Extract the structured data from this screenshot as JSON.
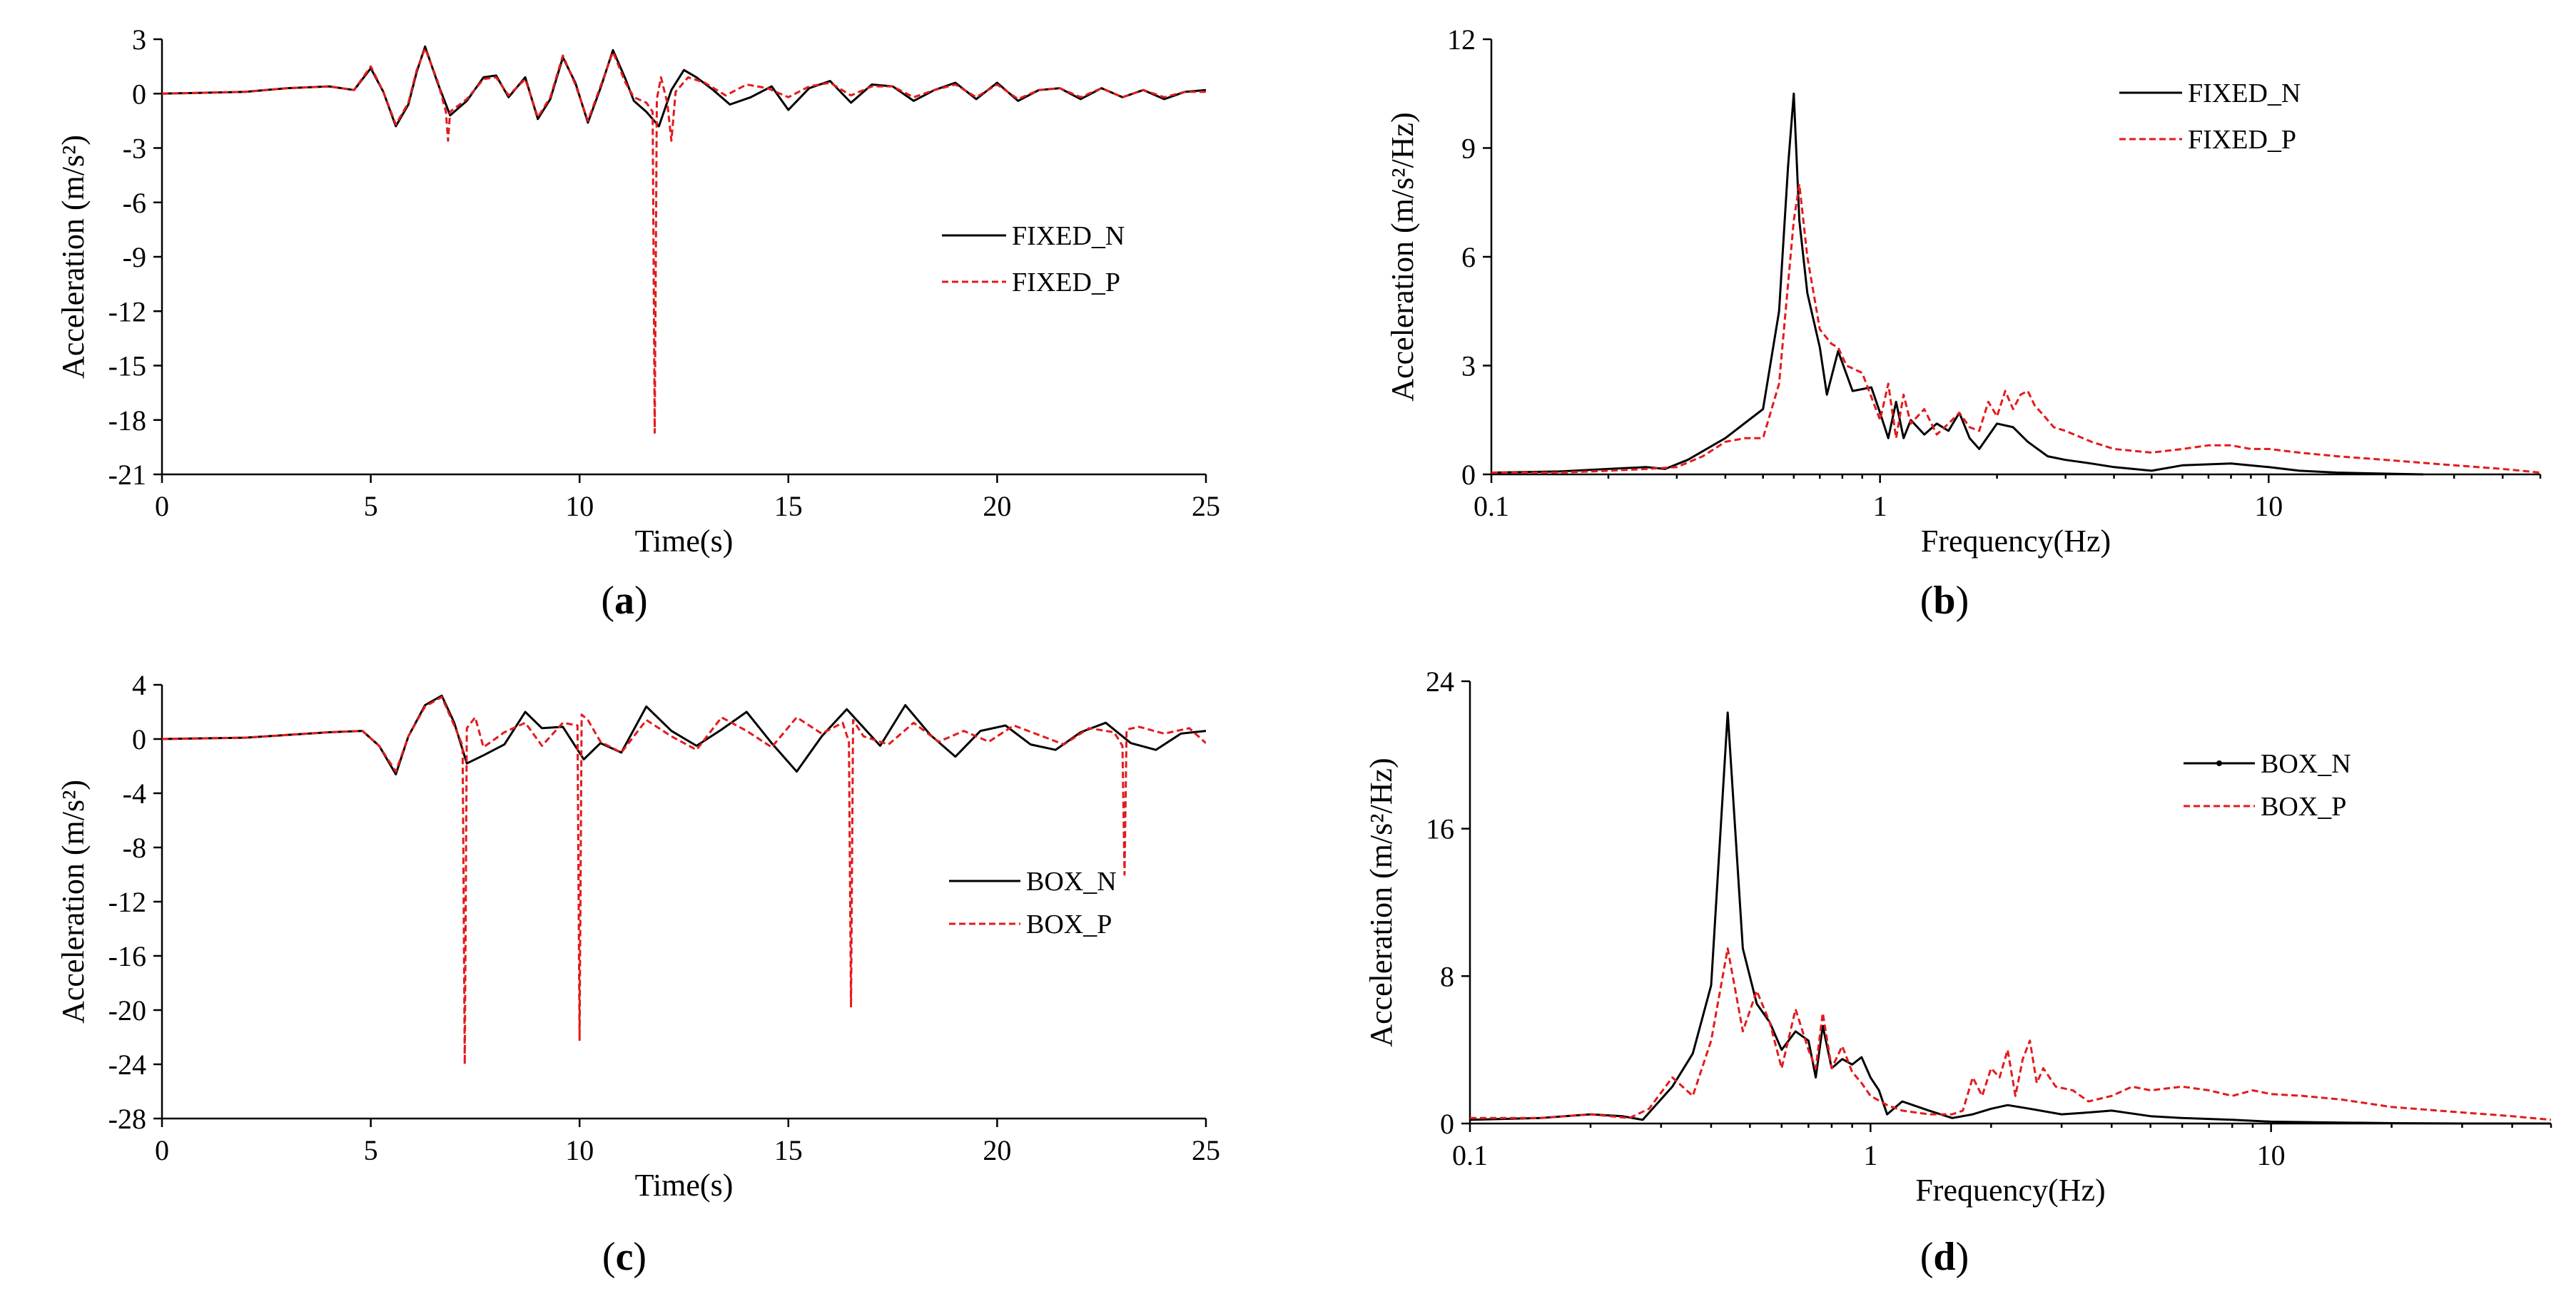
{
  "chart_data": [
    {
      "id": "a",
      "panel_label": "a",
      "type": "line",
      "xscale": "linear",
      "xlabel": "Time(s)",
      "ylabel": "Acceleration (m/s²)",
      "xlim": [
        0,
        25
      ],
      "ylim": [
        -21,
        3
      ],
      "xticks": [
        0,
        5,
        10,
        15,
        20,
        25
      ],
      "xtick_labels": [
        "0",
        "5",
        "10",
        "15",
        "20",
        "25"
      ],
      "yticks": [
        3,
        0,
        -3,
        -6,
        -9,
        -12,
        -15,
        -18,
        -21
      ],
      "ytick_labels": [
        "3",
        "0",
        "-3",
        "-6",
        "-9",
        "-12",
        "-15",
        "-18",
        "-21"
      ],
      "legend": [
        {
          "name": "FIXED_N",
          "color": "#000000",
          "style": "solid"
        },
        {
          "name": "FIXED_P",
          "color": "#e41a1c",
          "style": "dashed"
        }
      ],
      "series": [
        {
          "name": "FIXED_N",
          "color": "#000000",
          "style": "solid",
          "x": [
            0,
            2,
            3,
            4,
            4.6,
            5.0,
            5.3,
            5.6,
            5.9,
            6.1,
            6.3,
            6.6,
            6.9,
            7.3,
            7.7,
            8.0,
            8.3,
            8.7,
            9.0,
            9.3,
            9.6,
            9.9,
            10.2,
            10.5,
            10.8,
            11.1,
            11.3,
            11.6,
            11.9,
            12.2,
            12.5,
            12.8,
            13.2,
            13.6,
            14.1,
            14.6,
            15.0,
            15.5,
            16.0,
            16.5,
            17.0,
            17.5,
            18.0,
            18.5,
            19.0,
            19.5,
            20.0,
            20.5,
            21.0,
            21.5,
            22.0,
            22.5,
            23.0,
            23.5,
            24.0,
            24.5,
            25
          ],
          "y": [
            0,
            0.1,
            0.3,
            0.4,
            0.2,
            1.4,
            0.1,
            -1.8,
            -0.6,
            1.2,
            2.6,
            0.6,
            -1.2,
            -0.4,
            0.9,
            1.0,
            -0.2,
            0.9,
            -1.4,
            -0.3,
            2.0,
            0.6,
            -1.6,
            0.3,
            2.4,
            0.8,
            -0.4,
            -1.0,
            -1.8,
            0.2,
            1.3,
            0.9,
            0.2,
            -0.6,
            -0.2,
            0.4,
            -0.9,
            0.3,
            0.7,
            -0.5,
            0.5,
            0.4,
            -0.4,
            0.2,
            0.6,
            -0.3,
            0.6,
            -0.4,
            0.2,
            0.3,
            -0.3,
            0.3,
            -0.2,
            0.2,
            -0.3,
            0.1,
            0.2
          ]
        },
        {
          "name": "FIXED_P",
          "color": "#e41a1c",
          "style": "dashed",
          "x": [
            0,
            2,
            3,
            4,
            4.6,
            5.0,
            5.3,
            5.6,
            5.9,
            6.1,
            6.3,
            6.6,
            6.8,
            6.85,
            6.9,
            7.3,
            7.7,
            8.0,
            8.3,
            8.7,
            9.0,
            9.3,
            9.6,
            9.9,
            10.2,
            10.5,
            10.8,
            11.1,
            11.3,
            11.6,
            11.75,
            11.8,
            11.85,
            11.95,
            12.1,
            12.2,
            12.3,
            12.6,
            13.0,
            13.5,
            14.0,
            14.5,
            15.0,
            15.5,
            16.0,
            16.5,
            17.0,
            17.5,
            18.0,
            18.5,
            19.0,
            19.5,
            20.0,
            20.5,
            21.0,
            21.5,
            22.0,
            22.5,
            23.0,
            23.5,
            24.0,
            24.5,
            25
          ],
          "y": [
            0,
            0.1,
            0.3,
            0.4,
            0.2,
            1.5,
            0.1,
            -1.7,
            -0.5,
            1.3,
            2.5,
            0.7,
            -1.0,
            -2.6,
            -1.0,
            -0.3,
            0.8,
            0.9,
            -0.1,
            0.8,
            -1.3,
            -0.2,
            2.1,
            0.5,
            -1.5,
            0.4,
            2.3,
            0.6,
            -0.2,
            -0.5,
            -1.0,
            -18.7,
            -0.3,
            0.9,
            -0.5,
            -2.6,
            0.1,
            0.9,
            0.6,
            -0.1,
            0.5,
            0.3,
            -0.2,
            0.4,
            0.6,
            -0.1,
            0.4,
            0.4,
            -0.2,
            0.2,
            0.5,
            -0.2,
            0.5,
            -0.3,
            0.2,
            0.3,
            -0.2,
            0.3,
            -0.2,
            0.2,
            -0.2,
            0.1,
            0.1
          ]
        }
      ]
    },
    {
      "id": "b",
      "panel_label": "b",
      "type": "line",
      "xscale": "log",
      "xlabel": "Frequency(Hz)",
      "ylabel": "Acceleration (m/s²/Hz)",
      "xlim": [
        0.1,
        50
      ],
      "ylim": [
        0,
        12
      ],
      "xticks": [
        0.1,
        1,
        10
      ],
      "xtick_labels": [
        "0.1",
        "1",
        "10"
      ],
      "yticks": [
        0,
        3,
        6,
        9,
        12
      ],
      "ytick_labels": [
        "0",
        "3",
        "6",
        "9",
        "12"
      ],
      "legend": [
        {
          "name": "FIXED_N",
          "color": "#000000",
          "style": "solid"
        },
        {
          "name": "FIXED_P",
          "color": "#e41a1c",
          "style": "dashed"
        }
      ],
      "series": [
        {
          "name": "FIXED_N",
          "color": "#000000",
          "style": "solid",
          "x": [
            0.1,
            0.15,
            0.2,
            0.25,
            0.28,
            0.32,
            0.4,
            0.5,
            0.55,
            0.58,
            0.6,
            0.62,
            0.65,
            0.7,
            0.73,
            0.78,
            0.85,
            0.95,
            1.0,
            1.05,
            1.1,
            1.15,
            1.2,
            1.3,
            1.4,
            1.5,
            1.6,
            1.7,
            1.8,
            2.0,
            2.2,
            2.4,
            2.7,
            3.0,
            3.5,
            4.0,
            5.0,
            6.0,
            8.0,
            10,
            12,
            15,
            20,
            25
          ],
          "y": [
            0.05,
            0.08,
            0.15,
            0.2,
            0.15,
            0.4,
            1.0,
            1.8,
            4.5,
            8.5,
            10.5,
            7.0,
            5.0,
            3.5,
            2.2,
            3.4,
            2.3,
            2.4,
            1.7,
            1.0,
            2.0,
            1.0,
            1.5,
            1.1,
            1.4,
            1.2,
            1.7,
            1.0,
            0.7,
            1.4,
            1.3,
            0.9,
            0.5,
            0.4,
            0.3,
            0.2,
            0.1,
            0.25,
            0.3,
            0.2,
            0.1,
            0.05,
            0.02,
            0.0
          ]
        },
        {
          "name": "FIXED_P",
          "color": "#e41a1c",
          "style": "dashed",
          "x": [
            0.1,
            0.15,
            0.2,
            0.25,
            0.3,
            0.35,
            0.4,
            0.45,
            0.5,
            0.55,
            0.6,
            0.62,
            0.65,
            0.7,
            0.75,
            0.78,
            0.82,
            0.9,
            1.0,
            1.05,
            1.1,
            1.15,
            1.2,
            1.3,
            1.4,
            1.5,
            1.6,
            1.7,
            1.8,
            1.9,
            2.0,
            2.1,
            2.2,
            2.3,
            2.4,
            2.5,
            2.6,
            2.8,
            3.0,
            3.5,
            4.0,
            5.0,
            6.0,
            7.0,
            8.0,
            9.0,
            10,
            12,
            15,
            20,
            30,
            40,
            50
          ],
          "y": [
            0.05,
            0.05,
            0.1,
            0.15,
            0.2,
            0.5,
            0.9,
            1.0,
            1.0,
            2.5,
            7.0,
            8.0,
            6.0,
            4.0,
            3.6,
            3.5,
            3.0,
            2.8,
            1.5,
            2.5,
            1.0,
            2.2,
            1.4,
            1.8,
            1.1,
            1.4,
            1.7,
            1.3,
            1.2,
            2.0,
            1.6,
            2.3,
            1.8,
            2.2,
            2.3,
            1.9,
            1.7,
            1.3,
            1.2,
            0.9,
            0.7,
            0.6,
            0.7,
            0.8,
            0.8,
            0.7,
            0.7,
            0.6,
            0.5,
            0.4,
            0.25,
            0.15,
            0.05
          ]
        }
      ]
    },
    {
      "id": "c",
      "panel_label": "c",
      "type": "line",
      "xscale": "linear",
      "xlabel": "Time(s)",
      "ylabel": "Acceleration (m/s²)",
      "xlim": [
        0,
        25
      ],
      "ylim": [
        -28,
        4
      ],
      "xticks": [
        0,
        5,
        10,
        15,
        20,
        25
      ],
      "xtick_labels": [
        "0",
        "5",
        "10",
        "15",
        "20",
        "25"
      ],
      "yticks": [
        4,
        0,
        -4,
        -8,
        -12,
        -16,
        -20,
        -24,
        -28
      ],
      "ytick_labels": [
        "4",
        "0",
        "-4",
        "-8",
        "-12",
        "-16",
        "-20",
        "-24",
        "-28"
      ],
      "legend": [
        {
          "name": "BOX_N",
          "color": "#000000",
          "style": "solid"
        },
        {
          "name": "BOX_P",
          "color": "#e41a1c",
          "style": "dashed"
        }
      ],
      "series": [
        {
          "name": "BOX_N",
          "color": "#000000",
          "style": "solid",
          "x": [
            0,
            2,
            3,
            4,
            4.8,
            5.2,
            5.6,
            5.9,
            6.3,
            6.7,
            7.0,
            7.3,
            7.7,
            8.2,
            8.7,
            9.1,
            9.6,
            10.1,
            10.5,
            11.0,
            11.6,
            12.2,
            12.8,
            13.4,
            14.0,
            14.6,
            15.2,
            15.8,
            16.4,
            17.2,
            17.8,
            18.4,
            19.0,
            19.6,
            20.2,
            20.8,
            21.4,
            22.0,
            22.6,
            23.2,
            23.8,
            24.4,
            25
          ],
          "y": [
            0,
            0.1,
            0.3,
            0.5,
            0.6,
            -0.5,
            -2.6,
            0.2,
            2.5,
            3.2,
            1.2,
            -1.8,
            -1.2,
            -0.4,
            2.0,
            0.8,
            0.9,
            -1.5,
            -0.3,
            -1.0,
            2.4,
            0.6,
            -0.5,
            0.7,
            2.0,
            -0.3,
            -2.4,
            0.2,
            2.2,
            -0.5,
            2.5,
            0.3,
            -1.3,
            0.6,
            1.0,
            -0.4,
            -0.8,
            0.5,
            1.2,
            -0.3,
            -0.8,
            0.4,
            0.6
          ]
        },
        {
          "name": "BOX_P",
          "color": "#e41a1c",
          "style": "dashed",
          "x": [
            0,
            2,
            3,
            4,
            4.8,
            5.2,
            5.6,
            5.9,
            6.3,
            6.7,
            7.0,
            7.2,
            7.25,
            7.3,
            7.5,
            7.7,
            8.2,
            8.7,
            9.1,
            9.6,
            9.95,
            10.0,
            10.05,
            10.2,
            10.5,
            11.0,
            11.6,
            12.2,
            12.8,
            13.4,
            14.0,
            14.6,
            15.2,
            15.8,
            16.3,
            16.45,
            16.5,
            16.55,
            16.8,
            17.4,
            18.0,
            18.6,
            19.2,
            19.8,
            20.4,
            21.0,
            21.6,
            22.2,
            22.8,
            23.0,
            23.05,
            23.1,
            23.4,
            24.0,
            24.6,
            25
          ],
          "y": [
            0,
            0.1,
            0.3,
            0.5,
            0.6,
            -0.5,
            -2.4,
            0.2,
            2.4,
            3.1,
            1.0,
            -0.5,
            -24.0,
            0.8,
            1.6,
            -0.6,
            0.5,
            1.2,
            -0.5,
            1.2,
            1.0,
            -22.2,
            1.8,
            1.4,
            -0.2,
            -1.0,
            1.4,
            0.2,
            -0.8,
            1.6,
            0.6,
            -0.6,
            1.6,
            0.4,
            1.2,
            -0.2,
            -19.8,
            1.4,
            0.2,
            -0.4,
            1.2,
            -0.2,
            0.6,
            -0.2,
            1.0,
            0.3,
            -0.4,
            0.8,
            0.5,
            -0.5,
            -10.0,
            0.7,
            0.9,
            0.4,
            0.8,
            -0.3
          ]
        }
      ]
    },
    {
      "id": "d",
      "panel_label": "d",
      "type": "line",
      "xscale": "log",
      "xlabel": "Frequency(Hz)",
      "ylabel": "Acceleration (m/s²/Hz)",
      "xlim": [
        0.1,
        50
      ],
      "ylim": [
        0,
        24
      ],
      "xticks": [
        0.1,
        1,
        10
      ],
      "xtick_labels": [
        "0.1",
        "1",
        "10"
      ],
      "yticks": [
        0,
        8,
        16,
        24
      ],
      "ytick_labels": [
        "0",
        "8",
        "16",
        "24"
      ],
      "legend": [
        {
          "name": "BOX_N",
          "color": "#000000",
          "style": "solid-marker"
        },
        {
          "name": "BOX_P",
          "color": "#e41a1c",
          "style": "dashed"
        }
      ],
      "series": [
        {
          "name": "BOX_N",
          "color": "#000000",
          "style": "solid",
          "x": [
            0.1,
            0.15,
            0.2,
            0.24,
            0.27,
            0.32,
            0.36,
            0.4,
            0.44,
            0.48,
            0.52,
            0.56,
            0.6,
            0.65,
            0.7,
            0.73,
            0.76,
            0.8,
            0.85,
            0.9,
            0.95,
            1.0,
            1.05,
            1.1,
            1.2,
            1.4,
            1.6,
            1.8,
            2.0,
            2.2,
            2.5,
            3.0,
            3.5,
            4.0,
            5.0,
            6.0,
            8.0,
            10,
            15,
            20,
            30,
            50
          ],
          "y": [
            0.2,
            0.3,
            0.5,
            0.4,
            0.2,
            2.0,
            3.8,
            7.5,
            22.3,
            9.5,
            6.5,
            5.5,
            4.0,
            5.0,
            4.5,
            2.5,
            5.3,
            3.0,
            3.5,
            3.2,
            3.6,
            2.5,
            1.8,
            0.5,
            1.2,
            0.7,
            0.3,
            0.5,
            0.8,
            1.0,
            0.8,
            0.5,
            0.6,
            0.7,
            0.4,
            0.3,
            0.2,
            0.1,
            0.05,
            0.02,
            0.0,
            0.0
          ]
        },
        {
          "name": "BOX_P",
          "color": "#e41a1c",
          "style": "dashed",
          "x": [
            0.1,
            0.15,
            0.2,
            0.25,
            0.28,
            0.32,
            0.36,
            0.4,
            0.44,
            0.48,
            0.52,
            0.56,
            0.6,
            0.65,
            0.7,
            0.73,
            0.76,
            0.8,
            0.85,
            0.9,
            0.95,
            1.0,
            1.1,
            1.2,
            1.4,
            1.6,
            1.7,
            1.8,
            1.9,
            2.0,
            2.1,
            2.2,
            2.3,
            2.4,
            2.5,
            2.6,
            2.7,
            2.9,
            3.2,
            3.5,
            4.0,
            4.5,
            5.0,
            6.0,
            7.0,
            8.0,
            9.0,
            10,
            12,
            15,
            20,
            30,
            40,
            50
          ],
          "y": [
            0.3,
            0.3,
            0.5,
            0.3,
            0.8,
            2.5,
            1.5,
            4.5,
            9.5,
            5.0,
            7.2,
            5.5,
            3.0,
            6.2,
            4.0,
            3.0,
            6.0,
            3.0,
            4.2,
            2.8,
            2.2,
            1.5,
            1.0,
            0.7,
            0.5,
            0.5,
            0.7,
            2.5,
            1.5,
            3.0,
            2.5,
            4.0,
            1.5,
            3.5,
            4.5,
            2.2,
            3.0,
            2.0,
            1.8,
            1.2,
            1.5,
            2.0,
            1.8,
            2.0,
            1.8,
            1.5,
            1.8,
            1.6,
            1.5,
            1.3,
            0.9,
            0.6,
            0.4,
            0.2
          ]
        }
      ]
    }
  ]
}
